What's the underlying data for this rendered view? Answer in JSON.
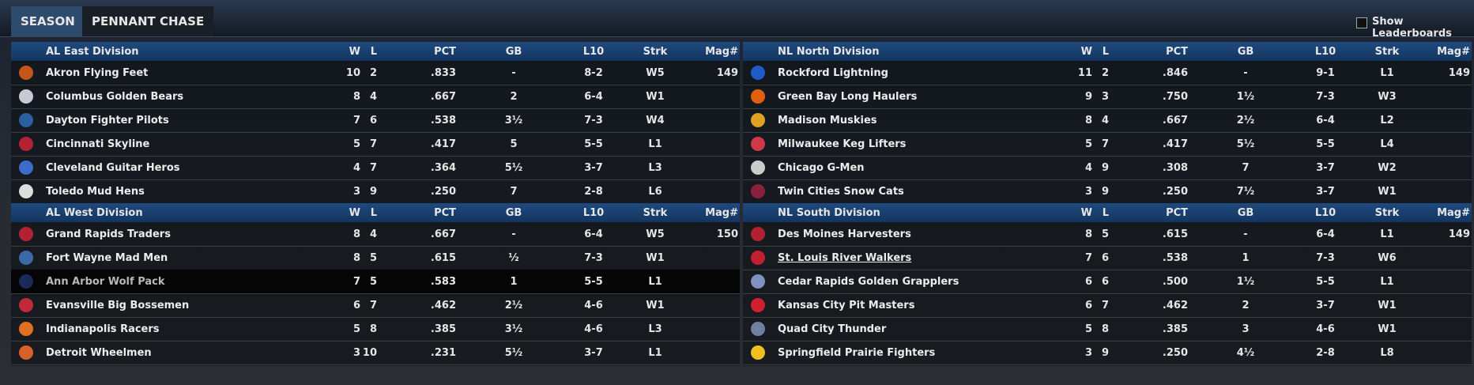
{
  "tabs": [
    "SEASON",
    "PENNANT CHASE"
  ],
  "show_leaderboards": "Show Leaderboards",
  "divisions": [
    {
      "name": "AL East Division",
      "columns": [
        "W",
        "L",
        "PCT",
        "GB",
        "L10",
        "Strk",
        "Mag#"
      ],
      "rows": [
        [
          "Akron  Flying Feet",
          "10",
          "2",
          ".833",
          "-",
          "8-2",
          "W5",
          "149"
        ],
        [
          "Columbus Golden Bears",
          "8",
          "4",
          ".667",
          "2",
          "6-4",
          "W1"
        ],
        [
          "Dayton Fighter Pilots",
          "7",
          "6",
          ".538",
          "3½",
          "7-3",
          "W4"
        ],
        [
          "Cincinnati Skyline",
          "5",
          "7",
          ".417",
          "5",
          "5-5",
          "L1"
        ],
        [
          "Cleveland Guitar Heros",
          "4",
          "7",
          ".364",
          "5½",
          "3-7",
          "L3"
        ],
        [
          "Toledo  Mud Hens",
          "3",
          "9",
          ".250",
          "7",
          "2-8",
          "L6"
        ]
      ]
    },
    {
      "name": "AL West Division",
      "columns": [
        "W",
        "L",
        "PCT",
        "GB",
        "L10",
        "Strk",
        "Mag#"
      ],
      "rows": [
        [
          "Grand Rapids Traders",
          "8",
          "4",
          ".667",
          "-",
          "6-4",
          "W5",
          "150"
        ],
        [
          "Fort Wayne Mad Men",
          "8",
          "5",
          ".615",
          "½",
          "7-3",
          "W1"
        ],
        [
          "Ann Arbor Wolf Pack",
          "7",
          "5",
          ".583",
          "1",
          "5-5",
          "L1"
        ],
        [
          "Evansville Big Bossemen",
          "6",
          "7",
          ".462",
          "2½",
          "4-6",
          "W1"
        ],
        [
          "Indianapolis Racers",
          "5",
          "8",
          ".385",
          "3½",
          "4-6",
          "L3"
        ],
        [
          "Detroit Wheelmen",
          "3",
          "10",
          ".231",
          "5½",
          "3-7",
          "L1"
        ]
      ]
    },
    {
      "name": "NL North Division",
      "columns": [
        "W",
        "L",
        "PCT",
        "GB",
        "L10",
        "Strk",
        "Mag#"
      ],
      "rows": [
        [
          "Rockford Lightning",
          "11",
          "2",
          ".846",
          "-",
          "9-1",
          "L1",
          "149"
        ],
        [
          "Green Bay  Long Haulers",
          "9",
          "3",
          ".750",
          "1½",
          "7-3",
          "W3"
        ],
        [
          "Madison Muskies",
          "8",
          "4",
          ".667",
          "2½",
          "6-4",
          "L2"
        ],
        [
          "Milwaukee Keg Lifters",
          "5",
          "7",
          ".417",
          "5½",
          "5-5",
          "L4"
        ],
        [
          "Chicago G-Men",
          "4",
          "9",
          ".308",
          "7",
          "3-7",
          "W2"
        ],
        [
          "Twin Cities Snow Cats",
          "3",
          "9",
          ".250",
          "7½",
          "3-7",
          "W1"
        ]
      ]
    },
    {
      "name": "NL South Division",
      "columns": [
        "W",
        "L",
        "PCT",
        "GB",
        "L10",
        "Strk",
        "Mag#"
      ],
      "rows": [
        [
          "Des Moines   Harvesters",
          "8",
          "5",
          ".615",
          "-",
          "6-4",
          "L1",
          "149"
        ],
        [
          "St. Louis River Walkers",
          "7",
          "6",
          ".538",
          "1",
          "7-3",
          "W6"
        ],
        [
          "Cedar Rapids Golden Grapplers",
          "6",
          "6",
          ".500",
          "1½",
          "5-5",
          "L1"
        ],
        [
          "Kansas City Pit Masters",
          "6",
          "7",
          ".462",
          "2",
          "3-7",
          "W1"
        ],
        [
          "Quad City Thunder",
          "5",
          "8",
          ".385",
          "3",
          "4-6",
          "W1"
        ],
        [
          "Springfield Prairie Fighters",
          "3",
          "9",
          ".250",
          "4½",
          "2-8",
          "L8"
        ]
      ]
    }
  ]
}
